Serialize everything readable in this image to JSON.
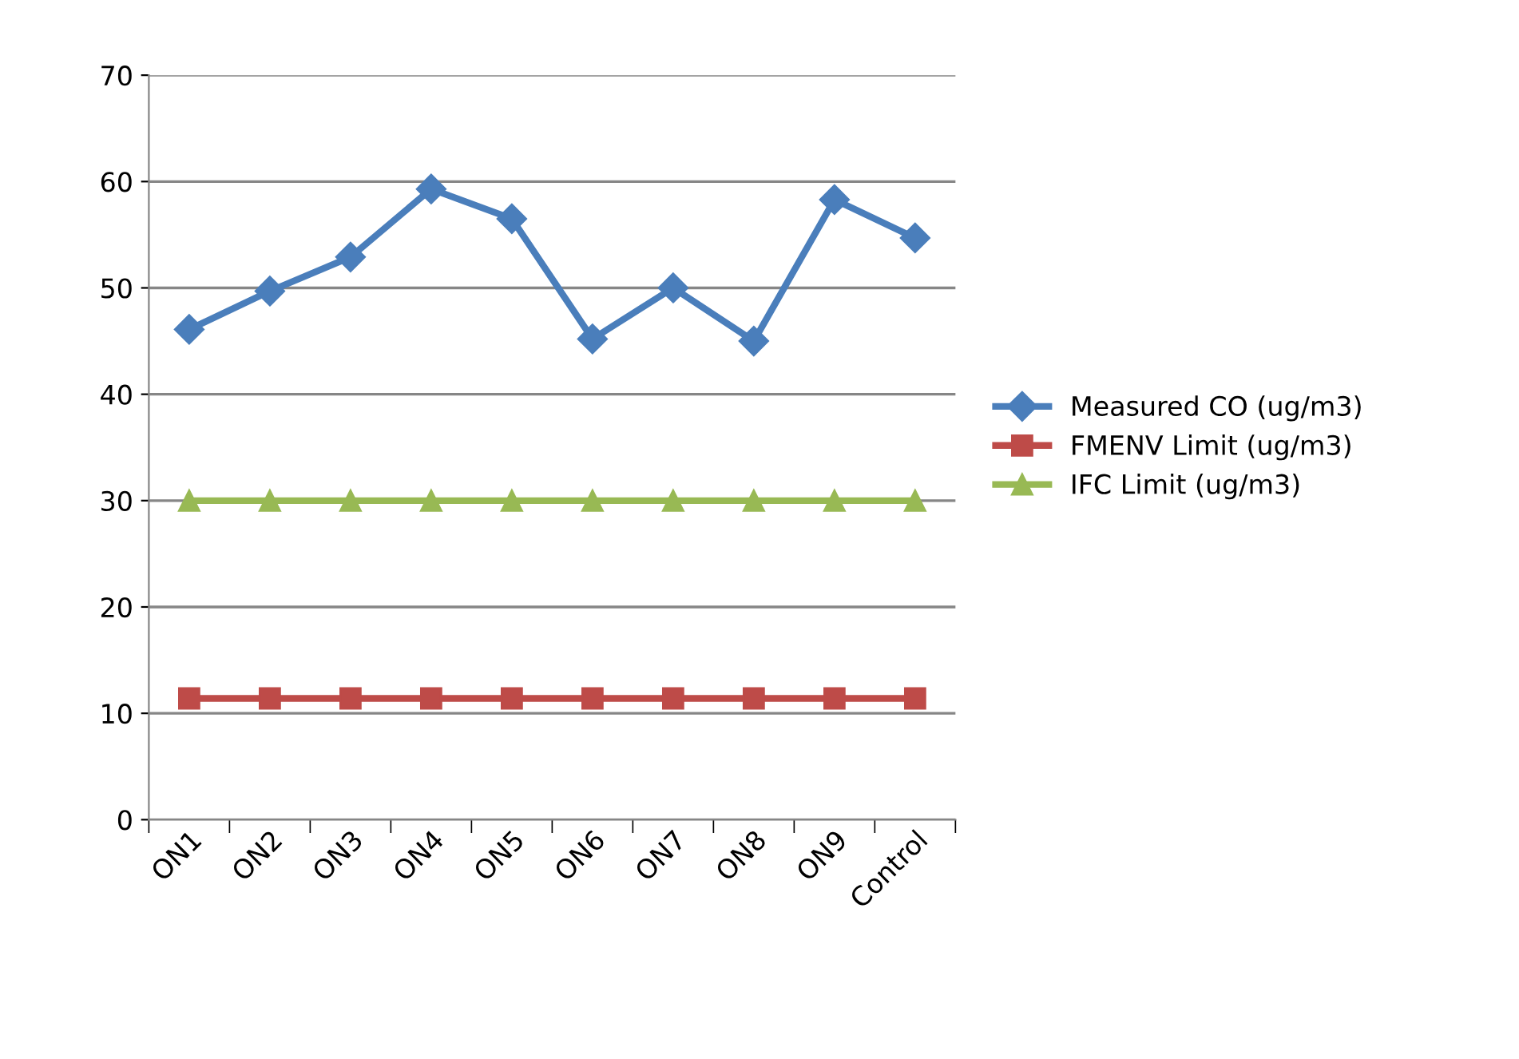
{
  "chart_data": {
    "type": "line",
    "categories": [
      "ON1",
      "ON2",
      "ON3",
      "ON4",
      "ON5",
      "ON6",
      "ON7",
      "ON8",
      "ON9",
      "Control"
    ],
    "series": [
      {
        "name": "Measured CO (ug/m3)",
        "color": "#4a7ebb",
        "marker": "diamond",
        "values": [
          46.1,
          49.7,
          52.9,
          59.3,
          56.5,
          45.2,
          50.0,
          45.0,
          58.3,
          54.7
        ]
      },
      {
        "name": "FMENV Limit (ug/m3)",
        "color": "#be4b48",
        "marker": "square",
        "values": [
          11.4,
          11.4,
          11.4,
          11.4,
          11.4,
          11.4,
          11.4,
          11.4,
          11.4,
          11.4
        ]
      },
      {
        "name": "IFC Limit (ug/m3)",
        "color": "#98b954",
        "marker": "triangle",
        "values": [
          30,
          30,
          30,
          30,
          30,
          30,
          30,
          30,
          30,
          30
        ]
      }
    ],
    "ylim": [
      0,
      70
    ],
    "yticks": [
      0,
      10,
      20,
      30,
      40,
      50,
      60,
      70
    ],
    "grid": "y",
    "legend": "right",
    "line_style": "solid"
  }
}
